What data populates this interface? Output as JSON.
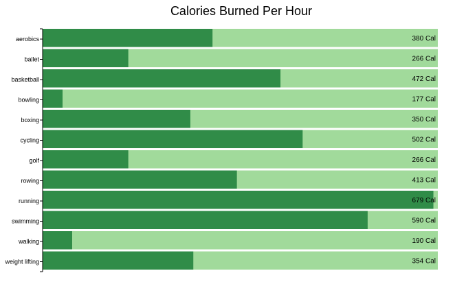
{
  "chart_data": {
    "type": "bar",
    "orientation": "horizontal",
    "title": "Calories Burned Per Hour",
    "xlabel": "",
    "ylabel": "",
    "value_suffix": " Cal",
    "categories": [
      "aerobics",
      "ballet",
      "basketball",
      "bowling",
      "boxing",
      "cycling",
      "golf",
      "rowing",
      "running",
      "swimming",
      "walking",
      "weight lifting"
    ],
    "values": [
      380,
      266,
      472,
      177,
      350,
      502,
      266,
      413,
      679,
      590,
      190,
      354
    ],
    "xlim": [
      150,
      685
    ],
    "grid": false,
    "legend": "none",
    "colors": {
      "bar_fill": "#308c48",
      "bar_track": "#a1da9b",
      "text": "#000000"
    }
  }
}
